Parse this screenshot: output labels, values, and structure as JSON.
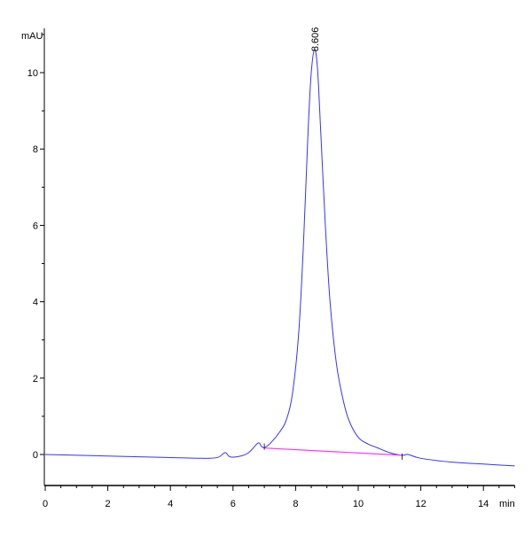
{
  "chart_data": {
    "type": "line",
    "xlabel": "min",
    "ylabel": "mAU",
    "xlim": [
      0,
      15
    ],
    "ylim": [
      -0.85,
      11.3
    ],
    "x_ticks": [
      "0",
      "2",
      "4",
      "6",
      "8",
      "10",
      "12",
      "14"
    ],
    "y_ticks": [
      "0",
      "2",
      "4",
      "6",
      "8",
      "10"
    ],
    "grid": false,
    "series": [
      {
        "color": "#3333ff",
        "x": [
          0,
          1,
          2,
          3,
          4,
          5,
          5.5,
          5.75,
          5.9,
          6.2,
          6.5,
          6.8,
          6.9,
          7.0,
          7.2,
          7.5,
          7.7,
          7.9,
          8.1,
          8.25,
          8.4,
          8.5,
          8.606,
          8.7,
          8.8,
          8.95,
          9.1,
          9.3,
          9.5,
          9.7,
          10.0,
          10.3,
          10.6,
          11.0,
          11.4,
          11.6,
          12.0,
          13.0,
          14.0,
          15.0
        ],
        "y": [
          0,
          -0.02,
          -0.04,
          -0.06,
          -0.08,
          -0.1,
          -0.08,
          0.05,
          -0.06,
          -0.05,
          0.05,
          0.3,
          0.22,
          0.18,
          0.3,
          0.6,
          0.9,
          1.6,
          3.2,
          5.5,
          8.5,
          10.0,
          10.6,
          10.1,
          8.5,
          6.0,
          4.0,
          2.4,
          1.5,
          0.9,
          0.45,
          0.28,
          0.18,
          0.05,
          -0.02,
          0.0,
          -0.1,
          -0.2,
          -0.25,
          -0.3
        ]
      }
    ],
    "baseline": {
      "color": "#ff33ff",
      "x": [
        7.0,
        11.4
      ],
      "y": [
        0.17,
        -0.02
      ]
    },
    "annotations": [
      {
        "text": "8.606",
        "x": 8.606,
        "y": 10.6
      }
    ]
  }
}
